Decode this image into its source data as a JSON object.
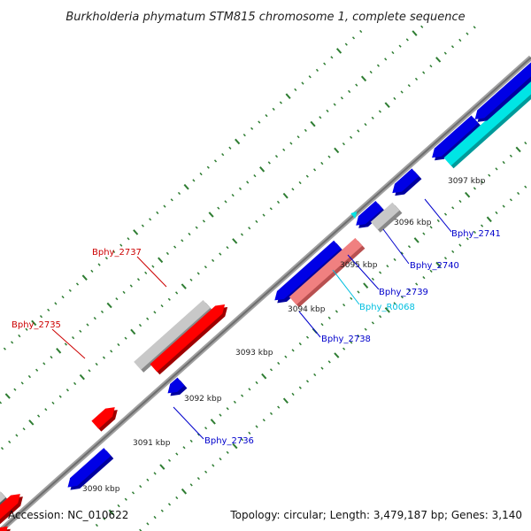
{
  "title": "Burkholderia phymatum STM815 chromosome 1, complete sequence",
  "footer": {
    "accession": "Accession: NC_010622",
    "summary": "Topology: circular; Length: 3,479,187 bp; Genes: 3,140"
  },
  "colors": {
    "backbone": "#8c8c8c",
    "forward_gene": "#ff0000",
    "reverse_gene": "#0000e6",
    "pseudo_gene": "#c8c8c8",
    "pseudo_forward": "#f08080",
    "rna_gene": "#00e5e5",
    "tick": "#2e7d32",
    "label_red": "#cc0000",
    "label_blue": "#0000cc",
    "label_cyan": "#00bfe0"
  },
  "kbp_labels": [
    "3090 kbp",
    "3091 kbp",
    "3092 kbp",
    "3093 kbp",
    "3094 kbp",
    "3095 kbp",
    "3096 kbp",
    "3097 kbp"
  ],
  "gene_labels": [
    {
      "id": "bphy-2735",
      "text": "Bphy_2735",
      "color": "label_red"
    },
    {
      "id": "bphy-2737",
      "text": "Bphy_2737",
      "color": "label_red"
    },
    {
      "id": "bphy-2736",
      "text": "Bphy_2736",
      "color": "label_blue"
    },
    {
      "id": "bphy-2738",
      "text": "Bphy_2738",
      "color": "label_blue"
    },
    {
      "id": "bphy-r0068",
      "text": "Bphy_R0068",
      "color": "label_cyan"
    },
    {
      "id": "bphy-2739",
      "text": "Bphy_2739",
      "color": "label_blue"
    },
    {
      "id": "bphy-2740",
      "text": "Bphy_2740",
      "color": "label_blue"
    },
    {
      "id": "bphy-2741",
      "text": "Bphy_2741",
      "color": "label_blue"
    }
  ]
}
